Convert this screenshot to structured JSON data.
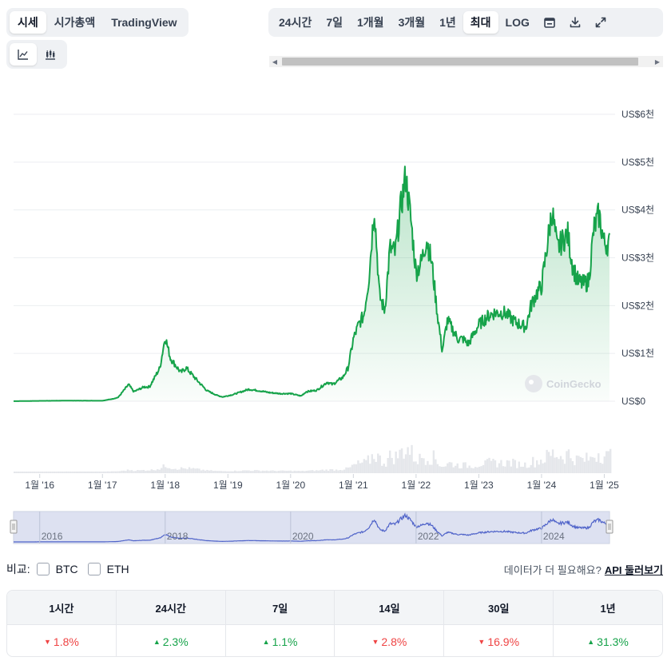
{
  "tabs": [
    {
      "label": "시세",
      "active": true
    },
    {
      "label": "시가총액",
      "active": false
    },
    {
      "label": "TradingView",
      "active": false
    }
  ],
  "ranges": [
    {
      "label": "24시간",
      "active": false
    },
    {
      "label": "7일",
      "active": false
    },
    {
      "label": "1개월",
      "active": false
    },
    {
      "label": "3개월",
      "active": false
    },
    {
      "label": "1년",
      "active": false
    },
    {
      "label": "최대",
      "active": true
    },
    {
      "label": "LOG",
      "active": false
    }
  ],
  "toolbar_icons": [
    "calendar-icon",
    "download-icon",
    "expand-icon"
  ],
  "chart_modes": [
    {
      "icon": "line-chart-icon",
      "active": true
    },
    {
      "icon": "candlestick-chart-icon",
      "active": false
    }
  ],
  "colors": {
    "price_line": "#16a34a",
    "navigator_line": "#4f63c9",
    "down": "#ef4444",
    "up": "#16a34a"
  },
  "watermark": "CoinGecko",
  "chart_data": {
    "type": "line",
    "series": [
      {
        "x": [
          "2015-08",
          "2016-01",
          "2016-06",
          "2017-01",
          "2017-03",
          "2017-04",
          "2017-06",
          "2017-07",
          "2017-09",
          "2017-10",
          "2017-12",
          "2018-01",
          "2018-02",
          "2018-04",
          "2018-05",
          "2018-07",
          "2018-09",
          "2018-11",
          "2018-12",
          "2019-02",
          "2019-05",
          "2019-07",
          "2019-09",
          "2019-11",
          "2020-01",
          "2020-03",
          "2020-04",
          "2020-06",
          "2020-08",
          "2020-09",
          "2020-11",
          "2020-12",
          "2021-01",
          "2021-02",
          "2021-03",
          "2021-04",
          "2021-05",
          "2021-06",
          "2021-07",
          "2021-08",
          "2021-09",
          "2021-10",
          "2021-11",
          "2021-12",
          "2022-01",
          "2022-02",
          "2022-03",
          "2022-04",
          "2022-05",
          "2022-06",
          "2022-07",
          "2022-08",
          "2022-09",
          "2022-10",
          "2022-11",
          "2023-01",
          "2023-03",
          "2023-04",
          "2023-06",
          "2023-08",
          "2023-10",
          "2023-11",
          "2023-12",
          "2024-01",
          "2024-02",
          "2024-03",
          "2024-04",
          "2024-06",
          "2024-07",
          "2024-08",
          "2024-09",
          "2024-10",
          "2024-11",
          "2024-12",
          "2025-01"
        ],
        "y": [
          1,
          8,
          12,
          10,
          50,
          80,
          350,
          200,
          300,
          300,
          700,
          1350,
          900,
          600,
          700,
          450,
          220,
          120,
          90,
          140,
          250,
          220,
          180,
          160,
          160,
          110,
          200,
          230,
          400,
          350,
          500,
          700,
          1300,
          1600,
          1800,
          2600,
          4100,
          2200,
          1900,
          3200,
          3100,
          4000,
          4700,
          3800,
          2700,
          2900,
          3400,
          2900,
          1900,
          1050,
          1700,
          1500,
          1300,
          1300,
          1200,
          1600,
          1800,
          1850,
          1850,
          1650,
          1550,
          2000,
          2250,
          2400,
          3200,
          4000,
          3200,
          3500,
          2800,
          2500,
          2450,
          2500,
          3600,
          3900,
          3300
        ]
      }
    ],
    "y_ticks": [
      "US$0",
      "US$1천",
      "US$2천",
      "US$3천",
      "US$4천",
      "US$5천",
      "US$6천"
    ],
    "ylim": [
      0,
      6000
    ],
    "x_ticks": [
      "1월 '16",
      "1월 '17",
      "1월 '18",
      "1월 '19",
      "1월 '20",
      "1월 '21",
      "1월 '22",
      "1월 '23",
      "1월 '24",
      "1월 '25"
    ],
    "navigator_labels": [
      "2016",
      "2018",
      "2020",
      "2022",
      "2024"
    ],
    "grid": true,
    "volume": true
  },
  "compare": {
    "label": "비교:",
    "options": [
      "BTC",
      "ETH"
    ]
  },
  "api_note": {
    "text": "데이터가 더 필요해요?",
    "link": "API 둘러보기"
  },
  "performance": {
    "headers": [
      "1시간",
      "24시간",
      "7일",
      "14일",
      "30일",
      "1년"
    ],
    "values": [
      {
        "dir": "down",
        "value": "1.8%"
      },
      {
        "dir": "up",
        "value": "2.3%"
      },
      {
        "dir": "up",
        "value": "1.1%"
      },
      {
        "dir": "down",
        "value": "2.8%"
      },
      {
        "dir": "down",
        "value": "16.9%"
      },
      {
        "dir": "up",
        "value": "31.3%"
      }
    ]
  }
}
